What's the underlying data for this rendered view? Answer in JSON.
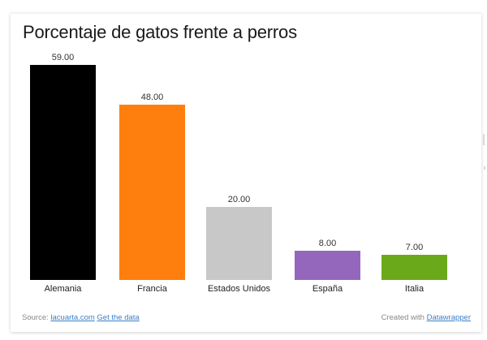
{
  "chart": {
    "title": "Porcentaje de gatos frente a perros"
  },
  "footer": {
    "source_prefix": "Source:",
    "source_link": "lacuarta.com",
    "get_data_link": "Get the data",
    "created_prefix": "Created with",
    "created_link": "Datawrapper"
  },
  "colors": {
    "Alemania": "#000000",
    "Francia": "#ff7f0e",
    "Estados Unidos": "#c8c8c8",
    "España": "#9467bd",
    "Italia": "#6aaa1a"
  },
  "chart_data": {
    "type": "bar",
    "title": "Porcentaje de gatos frente a perros",
    "xlabel": "",
    "ylabel": "",
    "categories": [
      "Alemania",
      "Francia",
      "Estados Unidos",
      "España",
      "Italia"
    ],
    "values": [
      59.0,
      48.0,
      20.0,
      8.0,
      7.0
    ],
    "value_labels": [
      "59.00",
      "48.00",
      "20.00",
      "8.00",
      "7.00"
    ],
    "colors": [
      "#000000",
      "#ff7f0e",
      "#c8c8c8",
      "#9467bd",
      "#6aaa1a"
    ],
    "ylim": [
      0,
      59
    ],
    "grid": false,
    "legend": "none",
    "data_labels": "above bars"
  }
}
